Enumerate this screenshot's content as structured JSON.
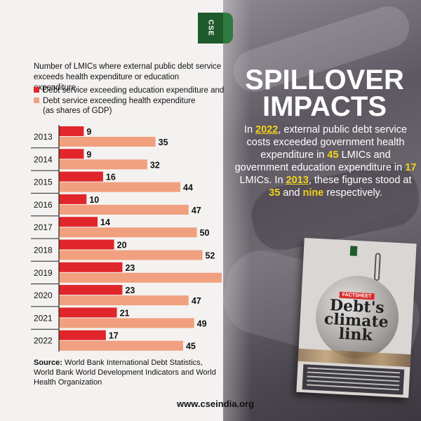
{
  "brand": {
    "logo_text": "CSE",
    "url": "www.cseindia.org"
  },
  "headline": {
    "line1": "SPILLOVER",
    "line2": "IMPACTS"
  },
  "story": {
    "p1": "In ",
    "y2022": "2022",
    "p2": ", external public debt service costs exceeded government health expenditure in ",
    "n45": "45",
    "p3": " LMICs and government education expenditure in ",
    "n17": "17",
    "p4": " LMICs. In ",
    "y2013": "2013",
    "p5": ", these figures stood at ",
    "n35": "35",
    "p6": " and ",
    "nine": "nine",
    "p7": " respectively."
  },
  "book": {
    "tag": "FACTSHEET",
    "title": "Debt's climate link"
  },
  "legend": {
    "heading": "Number of LMICs where external public debt service exceeds health expenditure or education expenditure",
    "education": "Debt service exceeding education expenditure and",
    "health": "Debt service exceeding health expenditure",
    "health_note": "(as shares of GDP)"
  },
  "source": {
    "label": "Source:",
    "text": " World Bank International Debt Statistics, World Bank World Development Indicators and World Health Organization"
  },
  "colors": {
    "education": "#e0262b",
    "health": "#f0a07f",
    "axis": "#222222"
  },
  "chart_data": {
    "type": "bar",
    "orientation": "horizontal",
    "categories": [
      "2013",
      "2014",
      "2015",
      "2016",
      "2017",
      "2018",
      "2019",
      "2020",
      "2021",
      "2022"
    ],
    "series": [
      {
        "name": "Debt service exceeding education expenditure",
        "values": [
          9,
          9,
          16,
          10,
          14,
          20,
          23,
          23,
          21,
          17
        ]
      },
      {
        "name": "Debt service exceeding health expenditure",
        "values": [
          35,
          32,
          44,
          47,
          50,
          52,
          59,
          47,
          49,
          45
        ]
      }
    ],
    "xlim": [
      0,
      59
    ],
    "grid": false
  }
}
